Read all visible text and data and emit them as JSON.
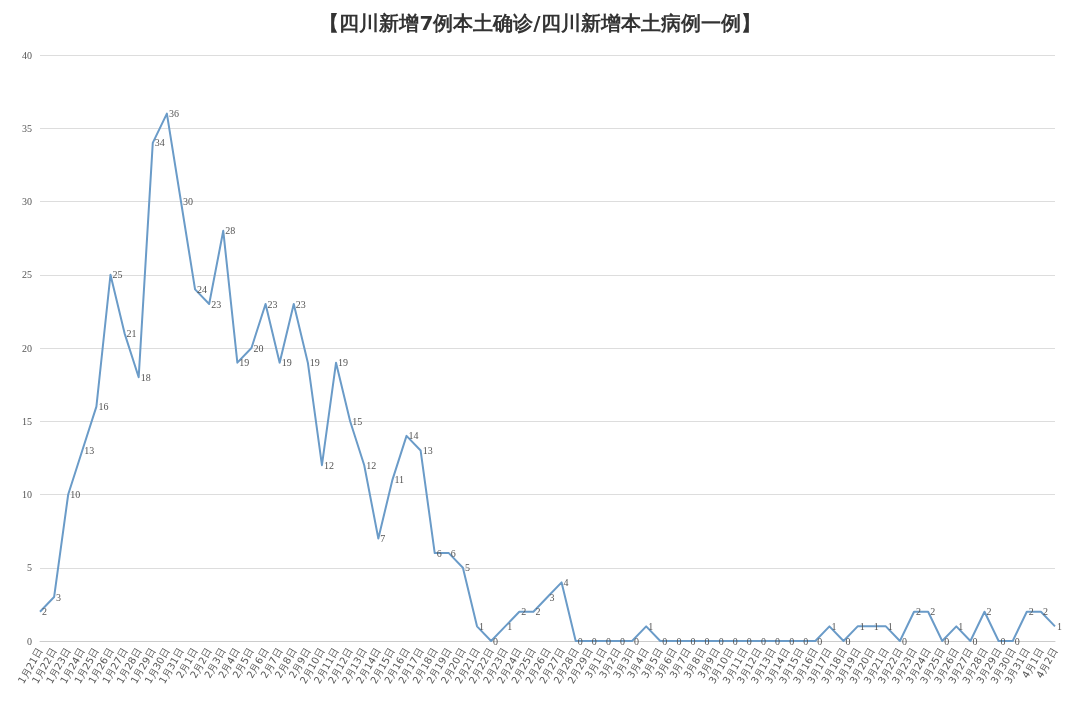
{
  "chart_data": {
    "type": "line",
    "title": "【四川新增7例本土确诊/四川新增本土病例一例】",
    "categories": [
      "1月21日",
      "1月22日",
      "1月23日",
      "1月24日",
      "1月25日",
      "1月26日",
      "1月27日",
      "1月28日",
      "1月29日",
      "1月30日",
      "1月31日",
      "2月1日",
      "2月2日",
      "2月3日",
      "2月4日",
      "2月5日",
      "2月6日",
      "2月7日",
      "2月8日",
      "2月9日",
      "2月10日",
      "2月11日",
      "2月12日",
      "2月13日",
      "2月14日",
      "2月15日",
      "2月16日",
      "2月17日",
      "2月18日",
      "2月19日",
      "2月20日",
      "2月21日",
      "2月22日",
      "2月23日",
      "2月24日",
      "2月25日",
      "2月26日",
      "2月27日",
      "2月28日",
      "2月29日",
      "3月1日",
      "3月2日",
      "3月3日",
      "3月4日",
      "3月5日",
      "3月6日",
      "3月7日",
      "3月8日",
      "3月9日",
      "3月10日",
      "3月11日",
      "3月12日",
      "3月13日",
      "3月14日",
      "3月15日",
      "3月16日",
      "3月17日",
      "3月18日",
      "3月19日",
      "3月20日",
      "3月21日",
      "3月22日",
      "3月23日",
      "3月24日",
      "3月25日",
      "3月26日",
      "3月27日",
      "3月28日",
      "3月29日",
      "3月30日",
      "3月31日",
      "4月1日",
      "4月2日"
    ],
    "series": [
      {
        "color": "#6a9bc8",
        "values": [
          2,
          3,
          10,
          13,
          16,
          25,
          21,
          18,
          34,
          36,
          30,
          24,
          23,
          28,
          19,
          20,
          23,
          19,
          23,
          19,
          12,
          19,
          15,
          12,
          7,
          11,
          14,
          13,
          6,
          6,
          5,
          1,
          0,
          1,
          2,
          2,
          3,
          4,
          0,
          0,
          0,
          0,
          0,
          1,
          0,
          0,
          0,
          0,
          0,
          0,
          0,
          0,
          0,
          0,
          0,
          0,
          1,
          0,
          1,
          1,
          1,
          0,
          2,
          2,
          0,
          1,
          0,
          2,
          0,
          0,
          2,
          2,
          1
        ]
      }
    ],
    "ylim": [
      0,
      40
    ],
    "yticks": [
      0,
      5,
      10,
      15,
      20,
      25,
      30,
      35,
      40
    ],
    "grid": "y",
    "data_labels": true,
    "marker": "none"
  }
}
